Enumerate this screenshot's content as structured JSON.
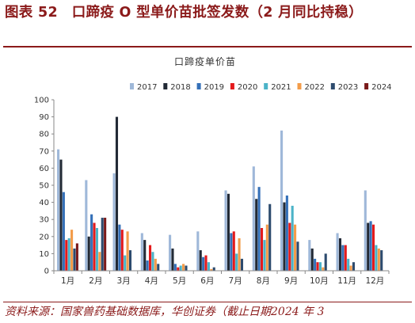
{
  "figure": {
    "title": "图表 52　口蹄疫 O 型单价苗批签发数（2 月同比持稳）",
    "source": "资料来源：国家兽药基础数据库，华创证券（截止日期2024 年 3"
  },
  "colors": {
    "2017": "#9fb8d9",
    "2018": "#222a36",
    "2019": "#3570b8",
    "2020": "#e41a1c",
    "2021": "#4bb3c8",
    "2022": "#f39c4a",
    "2023": "#2d4b6e",
    "2024": "#7a1a1a"
  },
  "chart_data": {
    "type": "bar",
    "title": "口蹄疫单价苗",
    "xlabel": "",
    "ylabel": "",
    "ylim": [
      0,
      100
    ],
    "yticks": [
      0,
      10,
      20,
      30,
      40,
      50,
      60,
      70,
      80,
      90,
      100
    ],
    "legend_position": "top-right",
    "grid": false,
    "categories": [
      "1月",
      "2月",
      "3月",
      "4月",
      "5月",
      "6月",
      "7月",
      "8月",
      "9月",
      "10月",
      "11月",
      "12月"
    ],
    "series": [
      {
        "name": "2017",
        "values": [
          71,
          53,
          57,
          22,
          21,
          23,
          47,
          61,
          82,
          18,
          22,
          47
        ]
      },
      {
        "name": "2018",
        "values": [
          65,
          20,
          90,
          18,
          13,
          12,
          45,
          42,
          40,
          13,
          19,
          28
        ]
      },
      {
        "name": "2019",
        "values": [
          46,
          33,
          27,
          6,
          4,
          8,
          22,
          49,
          44,
          7,
          15,
          29
        ]
      },
      {
        "name": "2020",
        "values": [
          18,
          28,
          24,
          15,
          2,
          9,
          23,
          25,
          28,
          5,
          15,
          27
        ]
      },
      {
        "name": "2021",
        "values": [
          19,
          25,
          9,
          11,
          3,
          5,
          10,
          18,
          38,
          5,
          7,
          15
        ]
      },
      {
        "name": "2022",
        "values": [
          24,
          11,
          23,
          7,
          4,
          1,
          19,
          27,
          27,
          2,
          3,
          13
        ]
      },
      {
        "name": "2023",
        "values": [
          13,
          31,
          12,
          4,
          3,
          2,
          7,
          39,
          17,
          10,
          5,
          12
        ]
      },
      {
        "name": "2024",
        "values": [
          16,
          31,
          null,
          null,
          null,
          null,
          null,
          null,
          null,
          null,
          null,
          null
        ]
      }
    ]
  }
}
